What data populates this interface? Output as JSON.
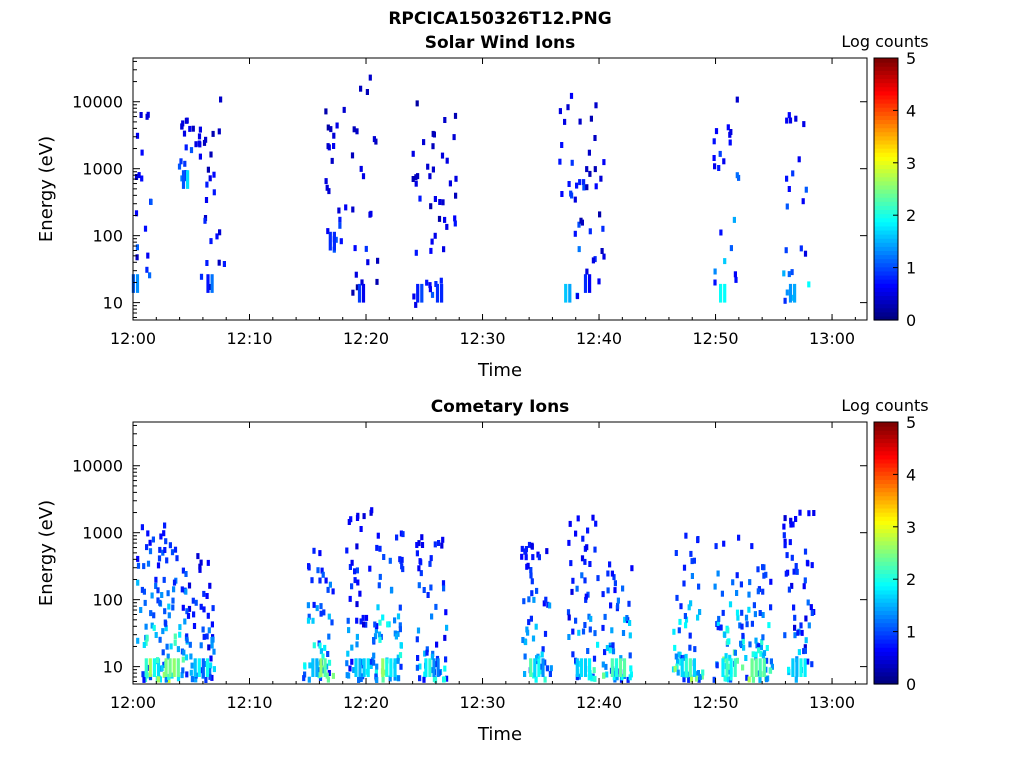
{
  "figure": {
    "title": "RPCICA150326T12.PNG"
  },
  "colorbar": {
    "label": "Log counts",
    "min": 0,
    "max": 5,
    "ticks": [
      "0",
      "1",
      "2",
      "3",
      "4",
      "5"
    ],
    "colormap": "jet",
    "colors": [
      "#00007f",
      "#0000ff",
      "#007fff",
      "#00ffff",
      "#7fff7f",
      "#ffff00",
      "#ff7f00",
      "#ff0000",
      "#7f0000"
    ]
  },
  "chart_data": [
    {
      "type": "heatmap",
      "title": "Solar Wind Ions",
      "xlabel": "Time",
      "ylabel": "Energy (eV)",
      "x_range": [
        "12:00",
        "13:03"
      ],
      "y_range": [
        5.5,
        45000
      ],
      "y_scale": "log",
      "x_ticks": [
        "12:00",
        "12:10",
        "12:20",
        "12:30",
        "12:40",
        "12:50",
        "13:00"
      ],
      "y_ticks": [
        "10",
        "100",
        "1000",
        "10000"
      ],
      "colorbar_label": "Log counts",
      "bursts": [
        {
          "t": 0.4,
          "e_min": 14,
          "e_max": 9000,
          "peak_log_counts": 1.6
        },
        {
          "t": 4.7,
          "e_min": 500,
          "e_max": 6000,
          "peak_log_counts": 1.8
        },
        {
          "t": 6.8,
          "e_min": 14,
          "e_max": 15000,
          "peak_log_counts": 1.2
        },
        {
          "t": 17.3,
          "e_min": 60,
          "e_max": 9000,
          "peak_log_counts": 1.2
        },
        {
          "t": 19.8,
          "e_min": 10,
          "e_max": 28000,
          "peak_log_counts": 1.0
        },
        {
          "t": 24.8,
          "e_min": 10,
          "e_max": 15000,
          "peak_log_counts": 1.0
        },
        {
          "t": 26.5,
          "e_min": 10,
          "e_max": 9000,
          "peak_log_counts": 1.0
        },
        {
          "t": 37.5,
          "e_min": 10,
          "e_max": 15000,
          "peak_log_counts": 1.8
        },
        {
          "t": 39.2,
          "e_min": 14,
          "e_max": 12000,
          "peak_log_counts": 1.0
        },
        {
          "t": 50.8,
          "e_min": 10,
          "e_max": 12000,
          "peak_log_counts": 2.0
        },
        {
          "t": 56.8,
          "e_min": 10,
          "e_max": 8000,
          "peak_log_counts": 2.0
        }
      ]
    },
    {
      "type": "heatmap",
      "title": "Cometary Ions",
      "xlabel": "Time",
      "ylabel": "Energy (eV)",
      "x_range": [
        "12:00",
        "13:03"
      ],
      "y_range": [
        5.5,
        45000
      ],
      "y_scale": "log",
      "x_ticks": [
        "12:00",
        "12:10",
        "12:20",
        "12:30",
        "12:40",
        "12:50",
        "13:00"
      ],
      "y_ticks": [
        "10",
        "100",
        "1000",
        "10000"
      ],
      "colorbar_label": "Log counts",
      "bursts": [
        {
          "t": 1.5,
          "e_min": 7,
          "e_max": 1500,
          "peak_log_counts": 2.8
        },
        {
          "t": 3.2,
          "e_min": 7,
          "e_max": 1000,
          "peak_log_counts": 2.8
        },
        {
          "t": 5.7,
          "e_min": 7,
          "e_max": 500,
          "peak_log_counts": 2.0
        },
        {
          "t": 15.8,
          "e_min": 7,
          "e_max": 600,
          "peak_log_counts": 2.7
        },
        {
          "t": 19.5,
          "e_min": 7,
          "e_max": 2800,
          "peak_log_counts": 2.0
        },
        {
          "t": 21.8,
          "e_min": 7,
          "e_max": 1200,
          "peak_log_counts": 2.8
        },
        {
          "t": 25.5,
          "e_min": 7,
          "e_max": 1200,
          "peak_log_counts": 2.2
        },
        {
          "t": 34.5,
          "e_min": 7,
          "e_max": 800,
          "peak_log_counts": 2.4
        },
        {
          "t": 38.5,
          "e_min": 7,
          "e_max": 2000,
          "peak_log_counts": 2.3
        },
        {
          "t": 41.5,
          "e_min": 7,
          "e_max": 400,
          "peak_log_counts": 2.6
        },
        {
          "t": 47.5,
          "e_min": 7,
          "e_max": 1200,
          "peak_log_counts": 2.8
        },
        {
          "t": 51.0,
          "e_min": 7,
          "e_max": 1000,
          "peak_log_counts": 2.9
        },
        {
          "t": 53.5,
          "e_min": 7,
          "e_max": 700,
          "peak_log_counts": 2.8
        },
        {
          "t": 57.0,
          "e_min": 7,
          "e_max": 2500,
          "peak_log_counts": 2.0
        }
      ]
    }
  ]
}
